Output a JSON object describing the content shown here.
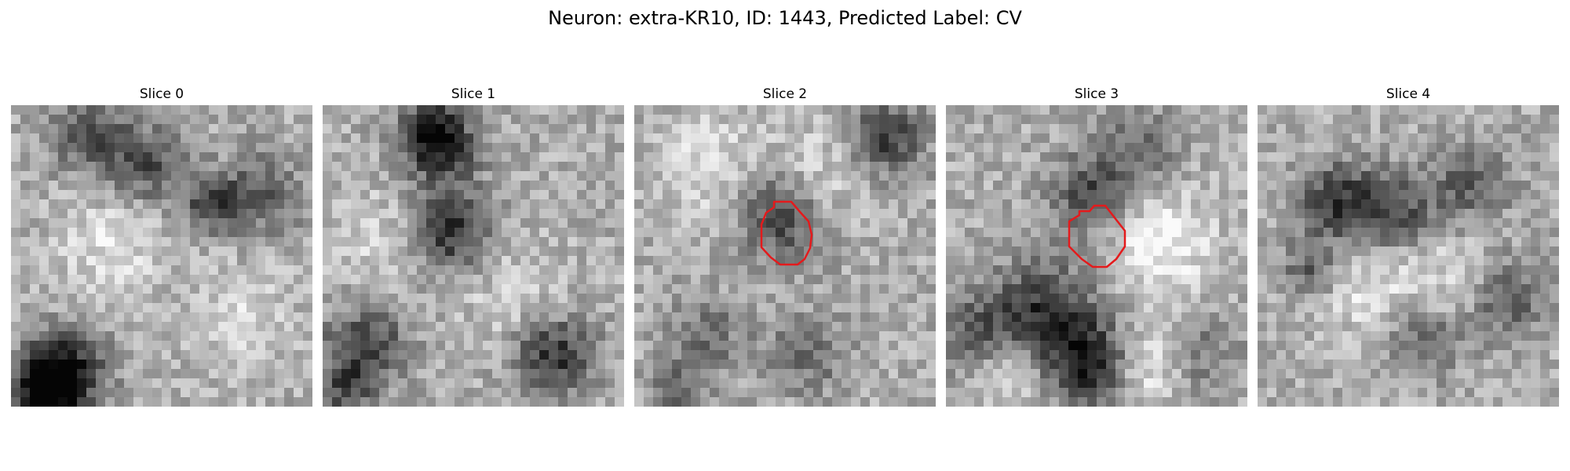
{
  "figure": {
    "title": "Neuron: extra-KR10, ID: 1443, Predicted Label: CV"
  },
  "panels": [
    {
      "title": "Slice 0",
      "contour": false,
      "seed": 11
    },
    {
      "title": "Slice 1",
      "contour": false,
      "seed": 23
    },
    {
      "title": "Slice 2",
      "contour": true,
      "seed": 37
    },
    {
      "title": "Slice 3",
      "contour": true,
      "seed": 53
    },
    {
      "title": "Slice 4",
      "contour": false,
      "seed": 71
    }
  ],
  "colors": {
    "contour": "#e41a1c"
  }
}
